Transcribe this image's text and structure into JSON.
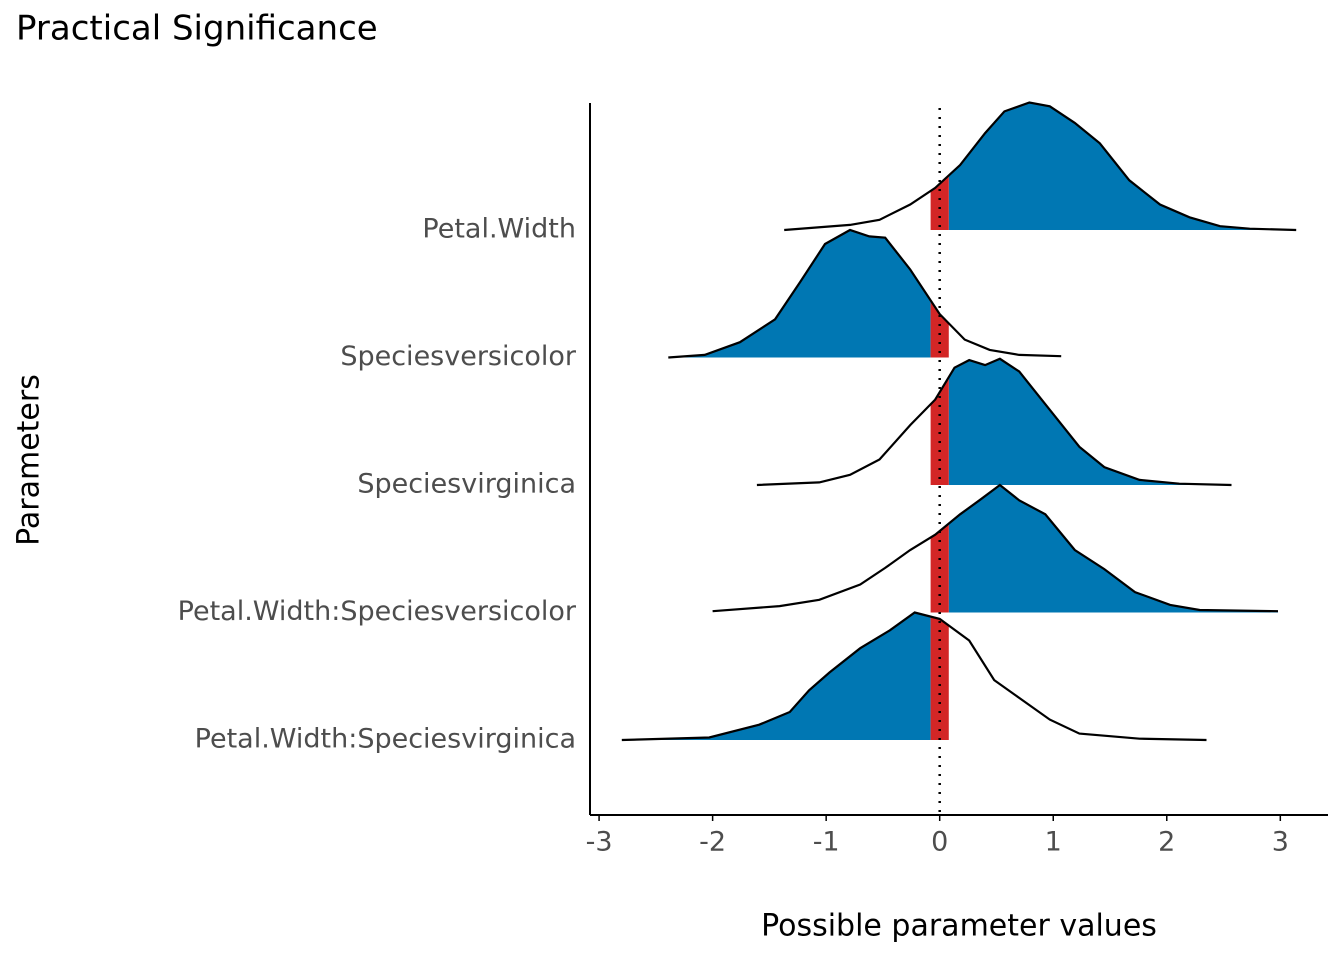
{
  "chart_data": {
    "type": "ridgeline",
    "title": "Practical Significance",
    "x_label": "Possible parameter values",
    "y_label": "Parameters",
    "categories": [
      "Petal.Width",
      "Speciesversicolor",
      "Speciesvirginica",
      "Petal.Width:Speciesversicolor",
      "Petal.Width:Speciesvirginica"
    ],
    "series": [
      {
        "fill_side": "right",
        "x": [
          -1.37,
          -0.79,
          -0.53,
          -0.26,
          -0.04,
          0.18,
          0.4,
          0.57,
          0.79,
          0.97,
          1.19,
          1.41,
          1.67,
          1.94,
          2.2,
          2.47,
          2.73,
          3.14
        ],
        "values": [
          0,
          0.04,
          0.08,
          0.2,
          0.33,
          0.51,
          0.76,
          0.93,
          1.0,
          0.97,
          0.84,
          0.68,
          0.39,
          0.2,
          0.1,
          0.03,
          0.01,
          0
        ]
      },
      {
        "fill_side": "left",
        "x": [
          -2.39,
          -2.07,
          -1.76,
          -1.45,
          -1.23,
          -1.01,
          -0.79,
          -0.62,
          -0.48,
          -0.26,
          0,
          0.22,
          0.44,
          0.7,
          1.07
        ],
        "values": [
          0,
          0.02,
          0.12,
          0.3,
          0.59,
          0.89,
          1.0,
          0.95,
          0.94,
          0.69,
          0.34,
          0.14,
          0.06,
          0.02,
          0.01
        ]
      },
      {
        "fill_side": "right",
        "x": [
          -1.61,
          -1.06,
          -0.79,
          -0.53,
          -0.26,
          -0.04,
          0.13,
          0.26,
          0.4,
          0.53,
          0.7,
          0.97,
          1.23,
          1.45,
          1.76,
          2.11,
          2.57
        ],
        "values": [
          0,
          0.02,
          0.08,
          0.2,
          0.47,
          0.67,
          0.92,
          0.98,
          0.94,
          0.99,
          0.89,
          0.59,
          0.3,
          0.14,
          0.04,
          0.01,
          0
        ]
      },
      {
        "fill_side": "right",
        "x": [
          -2.0,
          -1.41,
          -1.06,
          -0.7,
          -0.48,
          -0.26,
          -0.04,
          0.18,
          0.35,
          0.53,
          0.7,
          0.93,
          1.19,
          1.45,
          1.72,
          2.03,
          2.29,
          2.98
        ],
        "values": [
          0.01,
          0.05,
          0.1,
          0.22,
          0.35,
          0.49,
          0.61,
          0.77,
          0.88,
          1.0,
          0.88,
          0.77,
          0.49,
          0.34,
          0.16,
          0.06,
          0.02,
          0.01
        ]
      },
      {
        "fill_side": "left",
        "x": [
          -2.8,
          -2.03,
          -1.59,
          -1.32,
          -1.15,
          -0.97,
          -0.7,
          -0.44,
          -0.22,
          0,
          0.26,
          0.48,
          0.7,
          0.97,
          1.23,
          1.76,
          2.35
        ],
        "values": [
          0,
          0.02,
          0.12,
          0.22,
          0.39,
          0.53,
          0.72,
          0.86,
          1.0,
          0.95,
          0.78,
          0.47,
          0.33,
          0.16,
          0.05,
          0.01,
          0
        ]
      }
    ],
    "rope": [
      -0.08,
      0.08
    ],
    "rope_color": "#d32626",
    "significant_color": "#0077b3",
    "reference_line": 0,
    "xlim": [
      -3.08,
      3.42
    ],
    "xticks": [
      -3,
      -2,
      -1,
      0,
      1,
      2,
      3
    ]
  }
}
